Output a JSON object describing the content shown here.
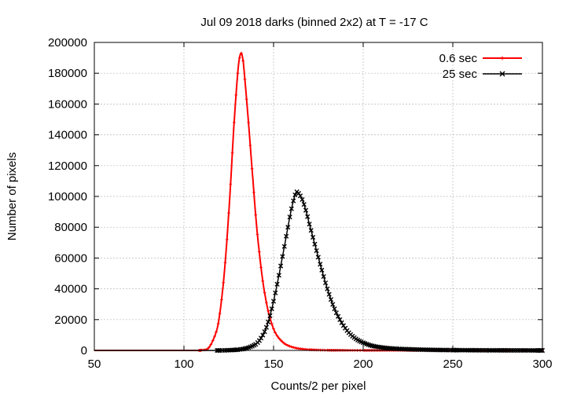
{
  "chart_data": {
    "type": "line",
    "title": "Jul 09 2018 darks (binned 2x2) at T = -17 C",
    "xlabel": "Counts/2 per pixel",
    "ylabel": "Number of pixels",
    "xlim": [
      50,
      300
    ],
    "ylim": [
      0,
      200000
    ],
    "xticks": [
      "50",
      "100",
      "150",
      "200",
      "250",
      "300"
    ],
    "yticks": [
      "0",
      "20000",
      "40000",
      "60000",
      "80000",
      "100000",
      "120000",
      "140000",
      "160000",
      "180000",
      "200000"
    ],
    "grid": true,
    "legend_position": "top-right",
    "series": [
      {
        "name": "0.6 sec",
        "color": "#ff0000",
        "marker": "plus",
        "x": [
          50,
          100,
          110,
          114,
          118,
          120,
          122,
          124,
          126,
          128,
          130,
          131,
          132,
          133,
          134,
          136,
          138,
          140,
          142,
          144,
          146,
          148,
          150,
          152,
          155,
          158,
          162,
          166,
          170,
          180,
          200,
          250,
          300
        ],
        "y": [
          0,
          0,
          200,
          2000,
          12000,
          24000,
          44000,
          72000,
          108000,
          148000,
          180000,
          190000,
          193000,
          188000,
          176000,
          148000,
          118000,
          88000,
          64000,
          45000,
          31000,
          21000,
          14000,
          9500,
          5500,
          3200,
          1700,
          900,
          500,
          150,
          50,
          0,
          0
        ]
      },
      {
        "name": "25 sec",
        "color": "#000000",
        "marker": "x",
        "x": [
          50,
          100,
          120,
          130,
          135,
          140,
          143,
          146,
          149,
          152,
          155,
          158,
          160,
          162,
          163,
          164,
          166,
          168,
          170,
          173,
          176,
          180,
          184,
          188,
          192,
          196,
          200,
          205,
          210,
          215,
          220,
          230,
          240,
          250,
          270,
          300
        ],
        "y": [
          0,
          0,
          0,
          500,
          1500,
          4000,
          8000,
          15000,
          27000,
          43000,
          61000,
          80000,
          92000,
          101000,
          103000,
          102000,
          98000,
          91000,
          82000,
          69000,
          56000,
          40000,
          27000,
          18000,
          11500,
          7500,
          5000,
          3000,
          2000,
          1400,
          1000,
          600,
          350,
          200,
          80,
          0
        ]
      }
    ]
  }
}
